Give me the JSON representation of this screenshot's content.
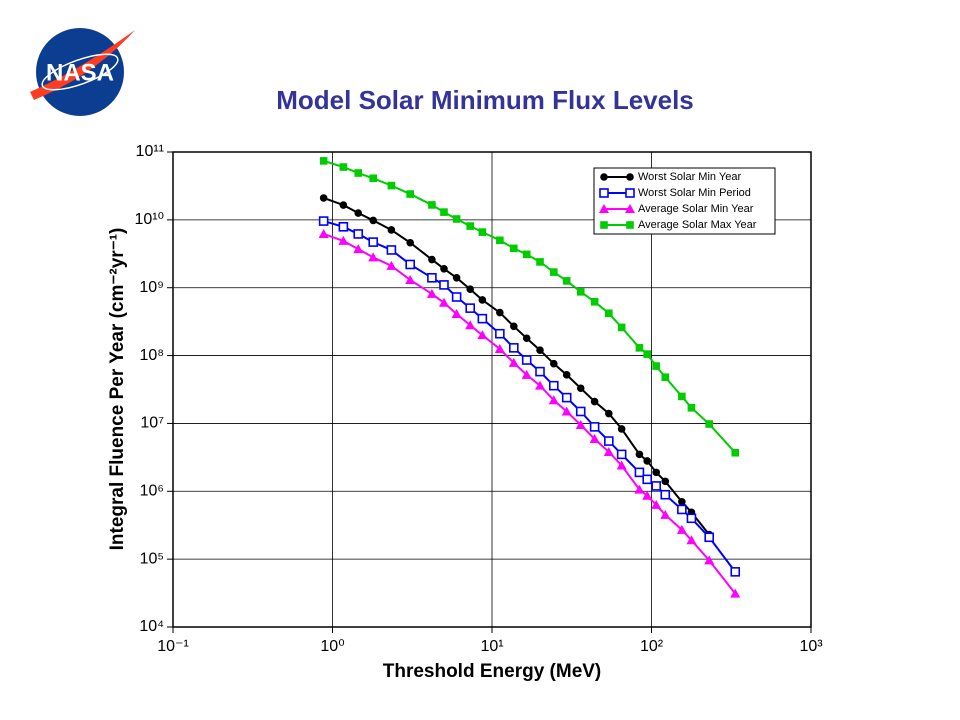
{
  "logo_text": "NASA",
  "chart_data": {
    "type": "line",
    "title": "Model Solar Minimum Flux Levels",
    "xlabel": "Threshold Energy (MeV)",
    "ylabel": "Integral Fluence Per Year (cm⁻²yr⁻¹)",
    "xscale": "log",
    "yscale": "log",
    "grid": true,
    "legend": "upper right",
    "xlim": [
      0.1,
      1000
    ],
    "ylim": [
      10000,
      100000000000
    ],
    "xticks": [
      {
        "value": 0.1,
        "label": "10⁻¹"
      },
      {
        "value": 1,
        "label": "10⁰"
      },
      {
        "value": 10,
        "label": "10¹"
      },
      {
        "value": 100,
        "label": "10²"
      },
      {
        "value": 1000,
        "label": "10³"
      }
    ],
    "yticks": [
      {
        "value": 10000,
        "label": "10⁴"
      },
      {
        "value": 100000,
        "label": "10⁵"
      },
      {
        "value": 1000000,
        "label": "10⁶"
      },
      {
        "value": 10000000,
        "label": "10⁷"
      },
      {
        "value": 100000000,
        "label": "10⁸"
      },
      {
        "value": 1000000000,
        "label": "10⁹"
      },
      {
        "value": 10000000000,
        "label": "10¹⁰"
      },
      {
        "value": 100000000000,
        "label": "10¹¹"
      }
    ],
    "x": [
      0.88,
      1.17,
      1.45,
      1.8,
      2.34,
      3.07,
      4.2,
      5.0,
      6.0,
      7.3,
      8.7,
      11.2,
      13.7,
      16.5,
      20,
      24.4,
      29.4,
      36,
      44,
      54,
      65,
      84,
      94,
      107,
      122,
      155,
      178,
      230,
      335
    ],
    "series": [
      {
        "name": "Worst Solar Min Year",
        "color": "#000000",
        "marker": "circle",
        "values": [
          21000000000.0,
          16500000000.0,
          12600000000.0,
          9800000000.0,
          7100000000.0,
          4600000000.0,
          2600000000.0,
          1900000000.0,
          1400000000.0,
          950000000.0,
          660000000.0,
          430000000.0,
          270000000.0,
          180000000.0,
          120000000.0,
          76000000.0,
          52000000.0,
          33000000.0,
          21000000.0,
          14000000.0,
          8300000.0,
          3500000.0,
          2800000.0,
          1900000.0,
          1400000.0,
          700000.0,
          490000.0,
          230000.0,
          null
        ]
      },
      {
        "name": "Worst Solar Min Period",
        "color": "#0000ff",
        "marker": "open-square",
        "values": [
          9600000000.0,
          7900000000.0,
          6200000000.0,
          4700000000.0,
          3600000000.0,
          2200000000.0,
          1400000000.0,
          1100000000.0,
          730000000.0,
          500000000.0,
          350000000.0,
          210000000.0,
          130000000.0,
          86000000.0,
          58000000.0,
          36000000.0,
          24000000.0,
          15000000.0,
          8900000.0,
          5500000.0,
          3500000.0,
          1900000.0,
          1500000.0,
          1200000.0,
          890000.0,
          540000.0,
          400000.0,
          210000.0,
          65000.0
        ]
      },
      {
        "name": "Average Solar Min Year",
        "color": "#ff00ff",
        "marker": "triangle",
        "values": [
          6200000000.0,
          4900000000.0,
          3700000000.0,
          2800000000.0,
          2100000000.0,
          1300000000.0,
          810000000.0,
          600000000.0,
          410000000.0,
          280000000.0,
          200000000.0,
          125000000.0,
          78000000.0,
          52000000.0,
          36000000.0,
          22000000.0,
          15000000.0,
          9500000.0,
          5900000.0,
          3800000.0,
          2400000.0,
          1060000.0,
          860000.0,
          630000.0,
          450000.0,
          270000.0,
          190000.0,
          96000.0,
          31000.0
        ]
      },
      {
        "name": "Average Solar Max Year",
        "color": "#00cc00",
        "marker": "square",
        "values": [
          74000000000.0,
          60000000000.0,
          49000000000.0,
          41000000000.0,
          32000000000.0,
          24000000000.0,
          16600000000.0,
          13000000000.0,
          10300000000.0,
          8100000000.0,
          6600000000.0,
          5000000000.0,
          3800000000.0,
          3100000000.0,
          2400000000.0,
          1700000000.0,
          1260000000.0,
          870000000.0,
          620000000.0,
          420000000.0,
          260000000.0,
          130000000.0,
          105000000.0,
          70000000.0,
          48000000.0,
          25000000.0,
          17000000.0,
          9800000.0,
          3700000.0
        ]
      }
    ]
  }
}
